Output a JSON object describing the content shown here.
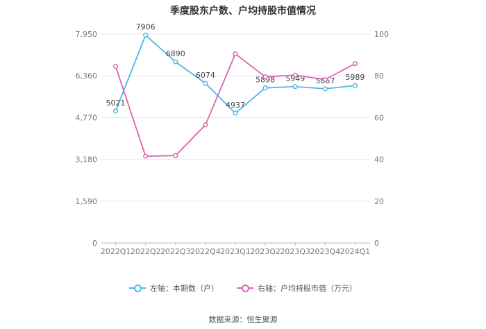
{
  "chart_data": {
    "type": "line",
    "title": "季度股东户数、户均持股市值情况",
    "categories": [
      "2022Q1",
      "2022Q2",
      "2022Q3",
      "2022Q4",
      "2023Q1",
      "2023Q2",
      "2023Q3",
      "2023Q4",
      "2024Q1"
    ],
    "left_axis": {
      "ticks": [
        "0",
        "1,590",
        "3,180",
        "4,770",
        "6,360",
        "7,950"
      ],
      "ylim": [
        0,
        7950
      ]
    },
    "right_axis": {
      "ticks": [
        "0",
        "20",
        "40",
        "60",
        "80",
        "100"
      ],
      "ylim": [
        0,
        100
      ]
    },
    "series": [
      {
        "name": "左轴：本期数（户）",
        "axis": "left",
        "color": "#4fb6e8",
        "values": [
          5021,
          7906,
          6890,
          6074,
          4937,
          5898,
          5949,
          5867,
          5989
        ],
        "labels": [
          "5021",
          "7906",
          "6890",
          "6074",
          "4937",
          "5898",
          "5949",
          "5867",
          "5989"
        ]
      },
      {
        "name": "右轴：户均持股市值（万元）",
        "axis": "right",
        "color": "#d966b0",
        "values": [
          84.5,
          41.5,
          41.8,
          56.5,
          90.5,
          79.5,
          80.3,
          78.2,
          85.8
        ]
      }
    ],
    "grid": true,
    "legend": "bottom-center"
  },
  "source": "数据来源：恒生聚源"
}
